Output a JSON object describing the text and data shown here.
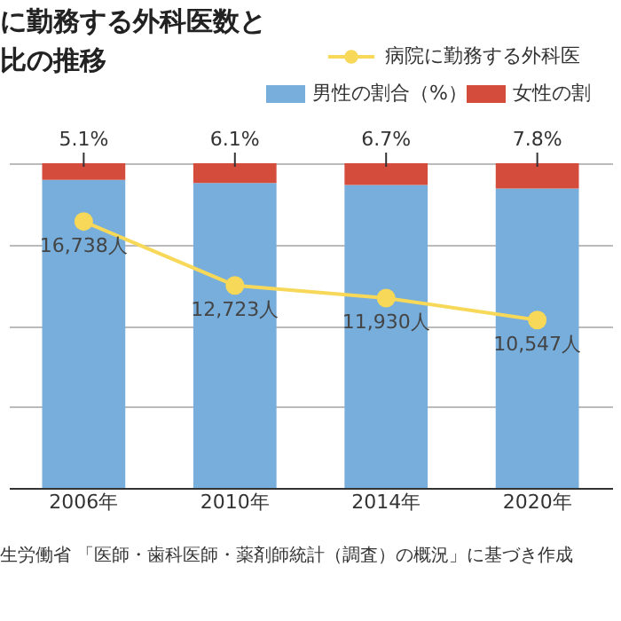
{
  "chart_data": {
    "type": "bar",
    "title": "に勤務する外科医数と比の推移",
    "categories": [
      "2006年",
      "2010年",
      "2014年",
      "2020年"
    ],
    "stacked": true,
    "ylim": [
      0,
      100
    ],
    "yticks": [
      {
        "value": 0,
        "label": null
      },
      {
        "value": 25,
        "label": null
      },
      {
        "value": 50,
        "label": null
      },
      {
        "value": 75,
        "label": null
      },
      {
        "value": 100,
        "label": null
      }
    ],
    "y2lim": [
      0,
      20400
    ],
    "tick_labels": "x",
    "grid": "y",
    "legend": "top right",
    "series": [
      {
        "name": "男性の割合（%）",
        "color": "#77aedc",
        "values": [
          94.9,
          93.9,
          93.3,
          92.2
        ]
      },
      {
        "name": "女性の割",
        "color": "#d44c3c",
        "values": [
          5.1,
          6.1,
          6.7,
          7.8
        ],
        "value_labels": [
          "5.1%",
          "6.1%",
          "6.7%",
          "7.8%"
        ]
      },
      {
        "name": "病院に勤務する外科医",
        "type": "line",
        "axis": "y2",
        "marker": "circle",
        "color": "#f7d858",
        "values": [
          16738,
          12723,
          11930,
          10547
        ],
        "value_labels": [
          "16,738人",
          "12,723人",
          "11,930人",
          "10,547人"
        ]
      }
    ],
    "annotations": [
      "生労働省 「医師・歯科医師・薬剤師統計（調査）の概況」に基づき作成"
    ]
  }
}
